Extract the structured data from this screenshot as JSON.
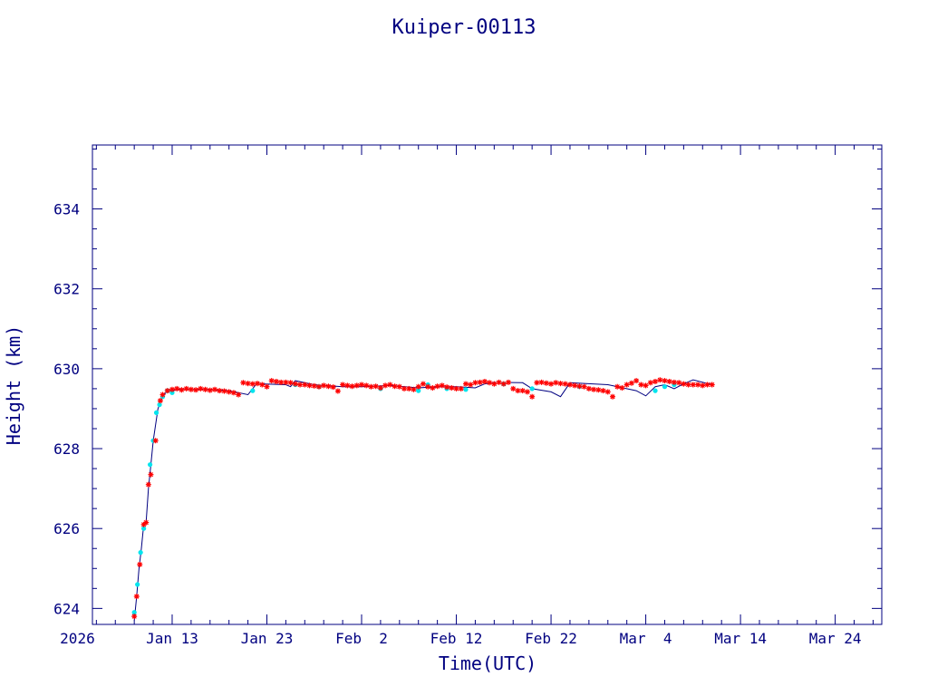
{
  "chart_data": {
    "type": "scatter",
    "title": "Kuiper-00113",
    "xlabel": "Time(UTC)",
    "ylabel": "Height (km)",
    "x_unit": "days",
    "xlim": [
      "2026-01-04T14:00",
      "2026-03-28T22:00"
    ],
    "ylim": [
      623.6,
      635.6
    ],
    "y_ticks": [
      624,
      626,
      628,
      630,
      632,
      634
    ],
    "x_ticks": [
      {
        "date": "2026-01-03",
        "label": "2026"
      },
      {
        "date": "2026-01-13",
        "label": "Jan 13"
      },
      {
        "date": "2026-01-23",
        "label": "Jan 23"
      },
      {
        "date": "2026-02-02",
        "label": "Feb  2"
      },
      {
        "date": "2026-02-12",
        "label": "Feb 12"
      },
      {
        "date": "2026-02-22",
        "label": "Feb 22"
      },
      {
        "date": "2026-03-04",
        "label": "Mar  4"
      },
      {
        "date": "2026-03-14",
        "label": "Mar 14"
      },
      {
        "date": "2026-03-24",
        "label": "Mar 24"
      }
    ],
    "colors": {
      "axes": "#000080",
      "line": "#000080",
      "series_red": "#ff0000",
      "series_cyan": "#00e5ee"
    },
    "line": {
      "x": [
        "2026-01-09",
        "2026-01-09T06",
        "2026-01-09T12",
        "2026-01-09T18",
        "2026-01-10",
        "2026-01-10T06",
        "2026-01-10T12",
        "2026-01-10T18",
        "2026-01-11",
        "2026-01-11T12",
        "2026-01-12",
        "2026-01-12T12",
        "2026-01-13",
        "2026-01-14",
        "2026-01-15",
        "2026-01-17",
        "2026-01-19",
        "2026-01-21",
        "2026-01-22",
        "2026-01-22T12",
        "2026-01-25",
        "2026-01-25T12",
        "2026-01-26",
        "2026-01-28",
        "2026-01-31",
        "2026-02-02",
        "2026-02-05",
        "2026-02-08",
        "2026-02-10",
        "2026-02-12",
        "2026-02-14",
        "2026-02-15",
        "2026-02-16",
        "2026-02-19",
        "2026-02-20",
        "2026-02-22",
        "2026-02-23",
        "2026-02-24",
        "2026-02-28",
        "2026-03-03",
        "2026-03-04",
        "2026-03-05",
        "2026-03-06",
        "2026-03-07",
        "2026-03-08",
        "2026-03-09",
        "2026-03-11"
      ],
      "y": [
        623.7,
        624.3,
        625.0,
        625.5,
        626.1,
        626.15,
        627.0,
        627.6,
        628.2,
        629.0,
        629.3,
        629.45,
        629.45,
        629.5,
        629.48,
        629.48,
        629.45,
        629.35,
        629.65,
        629.62,
        629.6,
        629.55,
        629.7,
        629.6,
        629.55,
        629.55,
        629.58,
        629.52,
        629.55,
        629.55,
        629.52,
        629.62,
        629.66,
        629.65,
        629.5,
        629.42,
        629.3,
        629.65,
        629.6,
        629.45,
        629.32,
        629.55,
        629.6,
        629.5,
        629.62,
        629.72,
        629.6
      ]
    },
    "series": [
      {
        "color": "red",
        "marker": "asterisk",
        "x": [
          "2026-01-09",
          "2026-01-09T06",
          "2026-01-09T14",
          "2026-01-10",
          "2026-01-10T06",
          "2026-01-10T12",
          "2026-01-10T18",
          "2026-01-11T06",
          "2026-01-11T18",
          "2026-01-12",
          "2026-01-12T12",
          "2026-01-13",
          "2026-01-13T12",
          "2026-01-14",
          "2026-01-14T12",
          "2026-01-15",
          "2026-01-15T12",
          "2026-01-16",
          "2026-01-16T12",
          "2026-01-17",
          "2026-01-17T12",
          "2026-01-18",
          "2026-01-18T12",
          "2026-01-19",
          "2026-01-19T12",
          "2026-01-20",
          "2026-01-20T12",
          "2026-01-21",
          "2026-01-21T12",
          "2026-01-22",
          "2026-01-22T12",
          "2026-01-23",
          "2026-01-23T12",
          "2026-01-24",
          "2026-01-24T12",
          "2026-01-25",
          "2026-01-25T12",
          "2026-01-26",
          "2026-01-26T12",
          "2026-01-27",
          "2026-01-27T12",
          "2026-01-28",
          "2026-01-28T12",
          "2026-01-29",
          "2026-01-29T12",
          "2026-01-30",
          "2026-01-30T12",
          "2026-01-31",
          "2026-01-31T12",
          "2026-02-01",
          "2026-02-01T12",
          "2026-02-02",
          "2026-02-02T12",
          "2026-02-03",
          "2026-02-03T12",
          "2026-02-04",
          "2026-02-04T12",
          "2026-02-05",
          "2026-02-05T12",
          "2026-02-06",
          "2026-02-06T12",
          "2026-02-07",
          "2026-02-07T12",
          "2026-02-08",
          "2026-02-08T12",
          "2026-02-09",
          "2026-02-09T12",
          "2026-02-10",
          "2026-02-10T12",
          "2026-02-11",
          "2026-02-11T12",
          "2026-02-12",
          "2026-02-12T12",
          "2026-02-13",
          "2026-02-13T12",
          "2026-02-14",
          "2026-02-14T12",
          "2026-02-15",
          "2026-02-15T12",
          "2026-02-16",
          "2026-02-16T12",
          "2026-02-17",
          "2026-02-17T12",
          "2026-02-18",
          "2026-02-18T12",
          "2026-02-19",
          "2026-02-19T12",
          "2026-02-20",
          "2026-02-20T12",
          "2026-02-21",
          "2026-02-21T12",
          "2026-02-22",
          "2026-02-22T12",
          "2026-02-23",
          "2026-02-23T12",
          "2026-02-24",
          "2026-02-24T12",
          "2026-02-25",
          "2026-02-25T12",
          "2026-02-26",
          "2026-02-26T12",
          "2026-02-27",
          "2026-02-27T12",
          "2026-02-28",
          "2026-02-28T12",
          "2026-03-01",
          "2026-03-01T12",
          "2026-03-02",
          "2026-03-02T12",
          "2026-03-03",
          "2026-03-03T12",
          "2026-03-04",
          "2026-03-04T12",
          "2026-03-05",
          "2026-03-05T12",
          "2026-03-06",
          "2026-03-06T12",
          "2026-03-07",
          "2026-03-07T12",
          "2026-03-08",
          "2026-03-08T12",
          "2026-03-09",
          "2026-03-09T12",
          "2026-03-10",
          "2026-03-10T12",
          "2026-03-11"
        ],
        "y": [
          623.8,
          624.3,
          625.1,
          626.1,
          626.15,
          627.1,
          627.35,
          628.2,
          629.2,
          629.35,
          629.45,
          629.48,
          629.5,
          629.47,
          629.5,
          629.48,
          629.47,
          629.5,
          629.48,
          629.46,
          629.48,
          629.45,
          629.44,
          629.42,
          629.4,
          629.35,
          629.65,
          629.63,
          629.62,
          629.63,
          629.6,
          629.55,
          629.7,
          629.68,
          629.66,
          629.66,
          629.65,
          629.62,
          629.6,
          629.6,
          629.58,
          629.57,
          629.55,
          629.58,
          629.56,
          629.54,
          629.44,
          629.6,
          629.58,
          629.56,
          629.58,
          629.6,
          629.58,
          629.55,
          629.56,
          629.52,
          629.58,
          629.6,
          629.56,
          629.55,
          629.5,
          629.5,
          629.48,
          629.55,
          629.62,
          629.55,
          629.52,
          629.56,
          629.58,
          629.54,
          629.52,
          629.5,
          629.5,
          629.62,
          629.6,
          629.65,
          629.66,
          629.68,
          629.65,
          629.62,
          629.66,
          629.62,
          629.66,
          629.5,
          629.45,
          629.45,
          629.42,
          629.3,
          629.65,
          629.66,
          629.64,
          629.62,
          629.65,
          629.63,
          629.62,
          629.6,
          629.58,
          629.56,
          629.55,
          629.5,
          629.48,
          629.47,
          629.45,
          629.42,
          629.3,
          629.55,
          629.52,
          629.6,
          629.64,
          629.7,
          629.6,
          629.58,
          629.65,
          629.68,
          629.72,
          629.7,
          629.68,
          629.66,
          629.65,
          629.62,
          629.6,
          629.6,
          629.6,
          629.58,
          629.6,
          629.6
        ]
      },
      {
        "color": "cyan",
        "marker": "filled-circle",
        "x": [
          "2026-01-09",
          "2026-01-09T08",
          "2026-01-09T16",
          "2026-01-10",
          "2026-01-10T16",
          "2026-01-11",
          "2026-01-11T08",
          "2026-01-11T16",
          "2026-01-12",
          "2026-01-12T12",
          "2026-01-13",
          "2026-01-21T12",
          "2026-01-26",
          "2026-01-28T12",
          "2026-02-04",
          "2026-02-08",
          "2026-02-09",
          "2026-02-11",
          "2026-02-13",
          "2026-02-17",
          "2026-02-20",
          "2026-02-25",
          "2026-03-05",
          "2026-03-06",
          "2026-03-07"
        ],
        "y": [
          623.9,
          624.6,
          625.4,
          626.0,
          627.6,
          628.2,
          628.9,
          629.1,
          629.3,
          629.45,
          629.4,
          629.45,
          629.6,
          629.55,
          629.5,
          629.45,
          629.6,
          629.5,
          629.48,
          629.62,
          629.5,
          629.55,
          629.45,
          629.55,
          629.6
        ]
      }
    ]
  }
}
